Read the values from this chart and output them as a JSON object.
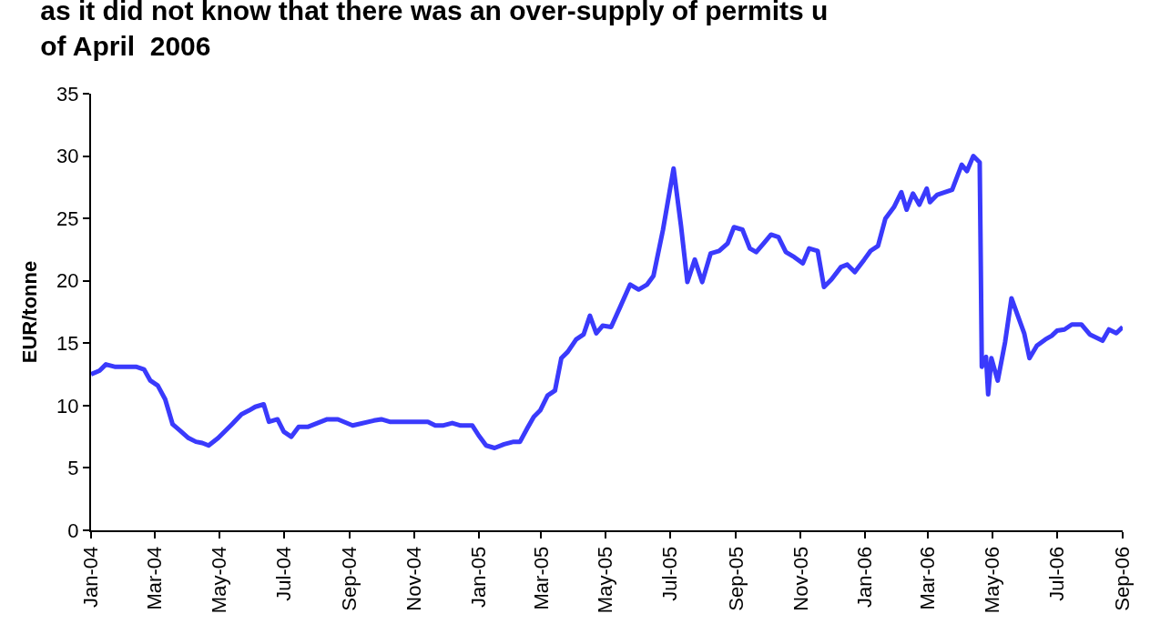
{
  "chart_data": {
    "type": "line",
    "title": "as it did not know that there was an over-supply of permits u\nof April  2006",
    "ylabel": "EUR/tonne",
    "x": [
      "2004-01-01",
      "2004-01-09",
      "2004-01-15",
      "2004-01-24",
      "2004-02-13",
      "2004-02-20",
      "2004-02-26",
      "2004-03-04",
      "2004-03-11",
      "2004-03-18",
      "2004-03-25",
      "2004-04-02",
      "2004-04-09",
      "2004-04-15",
      "2004-04-21",
      "2004-04-30",
      "2004-05-13",
      "2004-05-22",
      "2004-05-29",
      "2004-06-04",
      "2004-06-12",
      "2004-06-17",
      "2004-06-25",
      "2004-07-01",
      "2004-07-08",
      "2004-07-15",
      "2004-07-24",
      "2004-08-11",
      "2004-08-21",
      "2004-09-04",
      "2004-09-24",
      "2004-10-01",
      "2004-10-09",
      "2004-11-14",
      "2004-11-21",
      "2004-11-28",
      "2004-12-07",
      "2004-12-15",
      "2004-12-26",
      "2005-01-01",
      "2005-01-08",
      "2005-01-16",
      "2005-01-25",
      "2005-02-03",
      "2005-02-09",
      "2005-02-16",
      "2005-02-22",
      "2005-02-28",
      "2005-03-07",
      "2005-03-14",
      "2005-03-20",
      "2005-03-26",
      "2005-04-03",
      "2005-04-10",
      "2005-04-16",
      "2005-04-22",
      "2005-04-28",
      "2005-05-06",
      "2005-05-14",
      "2005-05-24",
      "2005-06-01",
      "2005-06-09",
      "2005-06-15",
      "2005-06-24",
      "2005-07-04",
      "2005-07-11",
      "2005-07-17",
      "2005-07-24",
      "2005-07-31",
      "2005-08-08",
      "2005-08-16",
      "2005-08-24",
      "2005-08-30",
      "2005-09-07",
      "2005-09-14",
      "2005-09-20",
      "2005-09-27",
      "2005-10-04",
      "2005-10-11",
      "2005-10-18",
      "2005-10-26",
      "2005-11-03",
      "2005-11-09",
      "2005-11-17",
      "2005-11-23",
      "2005-11-30",
      "2005-12-09",
      "2005-12-15",
      "2005-12-22",
      "2005-12-31",
      "2006-01-06",
      "2006-01-13",
      "2006-01-20",
      "2006-01-28",
      "2006-02-04",
      "2006-02-09",
      "2006-02-15",
      "2006-02-21",
      "2006-02-28",
      "2006-03-03",
      "2006-03-10",
      "2006-03-24",
      "2006-04-02",
      "2006-04-07",
      "2006-04-13",
      "2006-04-19",
      "2006-04-20",
      "2006-04-21",
      "2006-04-25",
      "2006-04-27",
      "2006-04-30",
      "2006-05-06",
      "2006-05-13",
      "2006-05-19",
      "2006-05-31",
      "2006-06-05",
      "2006-06-12",
      "2006-06-20",
      "2006-06-26",
      "2006-07-01",
      "2006-07-08",
      "2006-07-15",
      "2006-07-24",
      "2006-08-01",
      "2006-08-13",
      "2006-08-19",
      "2006-08-26",
      "2006-09-01"
    ],
    "series": [
      {
        "color": "#3a3afc",
        "values": [
          12.5,
          12.8,
          13.3,
          13.1,
          13.1,
          12.9,
          12.0,
          11.6,
          10.5,
          8.5,
          8.0,
          7.4,
          7.1,
          7.0,
          6.8,
          7.4,
          8.5,
          9.3,
          9.6,
          9.9,
          10.1,
          8.7,
          8.9,
          7.9,
          7.5,
          8.3,
          8.3,
          8.9,
          8.9,
          8.4,
          8.8,
          8.9,
          8.7,
          8.7,
          8.4,
          8.4,
          8.6,
          8.4,
          8.4,
          7.6,
          6.8,
          6.6,
          6.9,
          7.1,
          7.1,
          8.2,
          9.1,
          9.6,
          10.8,
          11.2,
          13.8,
          14.3,
          15.3,
          15.7,
          17.2,
          15.8,
          16.4,
          16.3,
          17.8,
          19.7,
          19.3,
          19.7,
          20.4,
          24.1,
          29.0,
          24.4,
          19.9,
          21.7,
          19.9,
          22.2,
          22.4,
          23.0,
          24.3,
          24.1,
          22.6,
          22.3,
          23.0,
          23.7,
          23.5,
          22.3,
          21.9,
          21.4,
          22.6,
          22.4,
          19.5,
          20.1,
          21.1,
          21.3,
          20.7,
          21.7,
          22.4,
          22.8,
          25.0,
          25.9,
          27.1,
          25.7,
          27.0,
          26.1,
          27.4,
          26.3,
          26.9,
          27.3,
          29.3,
          28.8,
          30.0,
          29.5,
          21.5,
          13.1,
          13.9,
          10.9,
          13.8,
          12.0,
          15.1,
          18.6,
          15.8,
          13.8,
          14.8,
          15.3,
          15.6,
          16.0,
          16.1,
          16.5,
          16.5,
          15.7,
          15.2,
          16.1,
          15.8,
          16.3
        ]
      }
    ],
    "xlim": [
      "2004-01-01",
      "2006-09-01"
    ],
    "xticks": [
      {
        "value": "2004-01-01",
        "label": "Jan-04"
      },
      {
        "value": "2004-03-01",
        "label": "Mar-04"
      },
      {
        "value": "2004-05-01",
        "label": "May-04"
      },
      {
        "value": "2004-07-01",
        "label": "Jul-04"
      },
      {
        "value": "2004-09-01",
        "label": "Sep-04"
      },
      {
        "value": "2004-11-01",
        "label": "Nov-04"
      },
      {
        "value": "2005-01-01",
        "label": "Jan-05"
      },
      {
        "value": "2005-03-01",
        "label": "Mar-05"
      },
      {
        "value": "2005-05-01",
        "label": "May-05"
      },
      {
        "value": "2005-07-01",
        "label": "Jul-05"
      },
      {
        "value": "2005-09-01",
        "label": "Sep-05"
      },
      {
        "value": "2005-11-01",
        "label": "Nov-05"
      },
      {
        "value": "2006-01-01",
        "label": "Jan-06"
      },
      {
        "value": "2006-03-01",
        "label": "Mar-06"
      },
      {
        "value": "2006-05-01",
        "label": "May-06"
      },
      {
        "value": "2006-07-01",
        "label": "Jul-06"
      },
      {
        "value": "2006-09-01",
        "label": "Sep-06"
      }
    ],
    "ylim": [
      0,
      35
    ],
    "yticks": [
      0,
      5,
      10,
      15,
      20,
      25,
      30,
      35
    ],
    "marker": "none",
    "line_style": "solid"
  }
}
